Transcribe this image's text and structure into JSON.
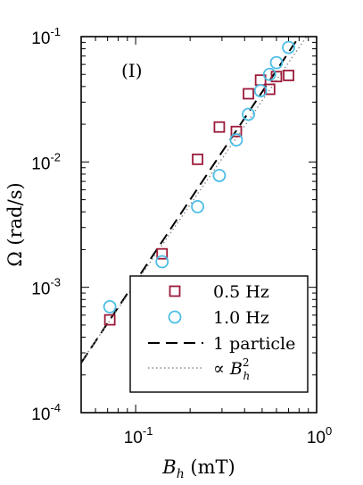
{
  "chart_data": {
    "type": "scatter",
    "panel_label": "(I)",
    "xlabel": {
      "main": "B",
      "sub": "h",
      "unit": " (mT)"
    },
    "ylabel": "Ω (rad/s)",
    "xscale": "log",
    "yscale": "log",
    "xlim": [
      0.05,
      1.0
    ],
    "ylim": [
      0.0001,
      0.1
    ],
    "xticks": [
      {
        "value": 0.1,
        "base": "10",
        "exp": "-1"
      },
      {
        "value": 1.0,
        "base": "10",
        "exp": "0"
      }
    ],
    "yticks": [
      {
        "value": 0.0001,
        "base": "10",
        "exp": "-4"
      },
      {
        "value": 0.001,
        "base": "10",
        "exp": "-3"
      },
      {
        "value": 0.01,
        "base": "10",
        "exp": "-2"
      },
      {
        "value": 0.1,
        "base": "10",
        "exp": "-1"
      }
    ],
    "series": [
      {
        "name": "0.5 Hz",
        "marker": "square",
        "color": "#9b1b3a",
        "points": [
          [
            0.072,
            0.00055
          ],
          [
            0.14,
            0.00185
          ],
          [
            0.22,
            0.0105
          ],
          [
            0.29,
            0.019
          ],
          [
            0.36,
            0.0175
          ],
          [
            0.42,
            0.035
          ],
          [
            0.49,
            0.045
          ],
          [
            0.55,
            0.038
          ],
          [
            0.6,
            0.048
          ],
          [
            0.7,
            0.049
          ]
        ]
      },
      {
        "name": "1.0 Hz",
        "marker": "circle",
        "color": "#4cbde6",
        "points": [
          [
            0.072,
            0.0007
          ],
          [
            0.14,
            0.0016
          ],
          [
            0.22,
            0.0044
          ],
          [
            0.29,
            0.0078
          ],
          [
            0.36,
            0.015
          ],
          [
            0.42,
            0.024
          ],
          [
            0.49,
            0.037
          ],
          [
            0.55,
            0.05
          ],
          [
            0.6,
            0.062
          ],
          [
            0.7,
            0.082
          ]
        ]
      }
    ],
    "lines": [
      {
        "name": "1 particle",
        "style": "dashed",
        "color": "#000000",
        "points": [
          [
            0.05,
            0.00025
          ],
          [
            0.8,
            0.1
          ]
        ]
      },
      {
        "name": "∝ B",
        "name_sub": "h",
        "name_sup": "2",
        "style": "dotted",
        "color": "#888888",
        "points": [
          [
            0.05,
            0.000254
          ],
          [
            0.88,
            0.1
          ]
        ]
      }
    ],
    "legend_position": "bottom-center",
    "grid": false
  }
}
